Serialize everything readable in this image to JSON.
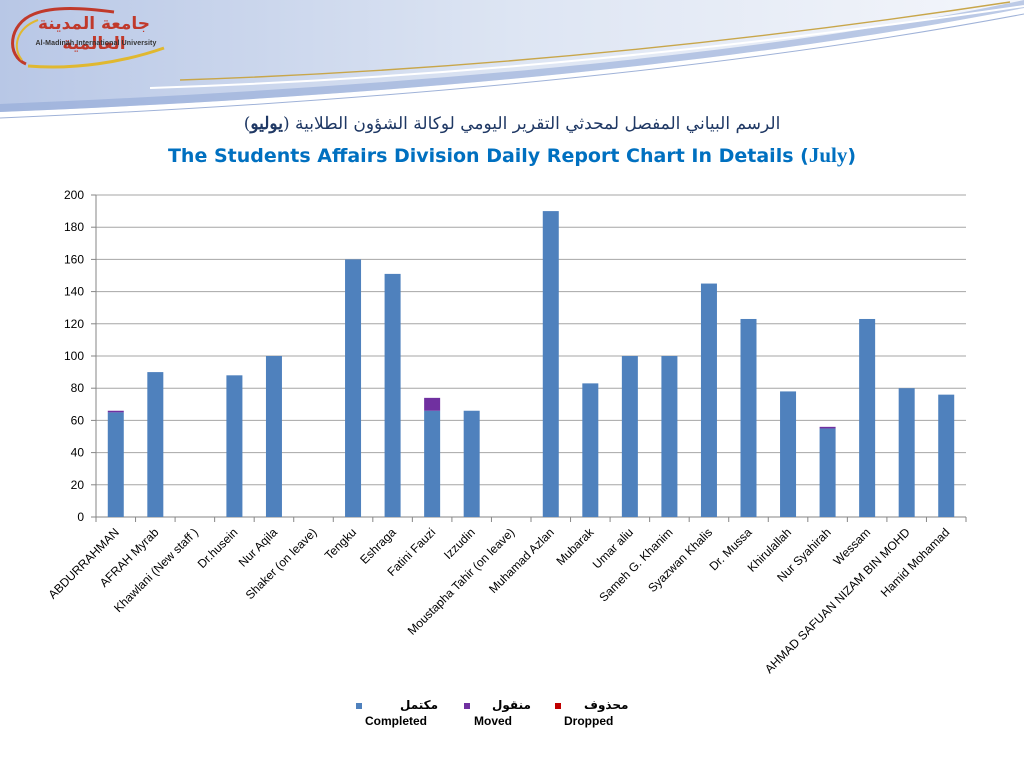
{
  "logo": {
    "arabic": "جامعة المدينة العالمية",
    "english": "Al-Madinah International University"
  },
  "title": {
    "arabic_before": "الرسم البياني المفصل لمحدثي التقرير اليومي لوكالة الشؤون الطلابية (",
    "arabic_month": "يوليو",
    "arabic_after": ")",
    "english_before": "The Students Affairs Division Daily Report Chart In Details (",
    "english_month": "July",
    "english_after": ")"
  },
  "colors": {
    "completed": "#4f81bd",
    "moved": "#7030a0",
    "dropped": "#c00000",
    "grid": "#a6a6a6",
    "axis": "#868686"
  },
  "chart_data": {
    "type": "bar",
    "stacked": true,
    "title": "",
    "xlabel": "",
    "ylabel": "",
    "ylim": [
      0,
      200
    ],
    "yticks": [
      0,
      20,
      40,
      60,
      80,
      100,
      120,
      140,
      160,
      180,
      200
    ],
    "grid": true,
    "legend_position": "bottom",
    "categories": [
      "ABDURRAHMAN",
      "AFRAH Myrab",
      "Khawlani (New staff )",
      "Dr.husein",
      "Nur Aqila",
      "Shaker (on leave)",
      "Tengku",
      "Eshraga",
      "Fatini Fauzi",
      "Izzudin",
      "Moustapha Tahir (on leave)",
      "Muhamad Azlan",
      "Mubarak",
      "Umar aliu",
      "Sameh G. Khanim",
      "Syazwan Khalis",
      "Dr. Mussa",
      "Khirulallah",
      "Nur Syahirah",
      "Wessam",
      "AHMAD SAFUAN NIZAM BIN MOHD",
      "Hamid  Mohamad"
    ],
    "series": [
      {
        "key": "completed",
        "name": "Completed",
        "name_ar": "مكتمل",
        "values": [
          65,
          90,
          0,
          88,
          100,
          0,
          160,
          151,
          66,
          66,
          0,
          190,
          83,
          100,
          100,
          145,
          123,
          78,
          55,
          123,
          80,
          76
        ]
      },
      {
        "key": "moved",
        "name": "Moved",
        "name_ar": "منقول",
        "values": [
          1,
          0,
          0,
          0,
          0,
          0,
          0,
          0,
          8,
          0,
          0,
          0,
          0,
          0,
          0,
          0,
          0,
          0,
          1,
          0,
          0,
          0
        ]
      },
      {
        "key": "dropped",
        "name": "Dropped",
        "name_ar": "محذوف",
        "values": [
          0,
          0,
          0,
          0,
          0,
          0,
          0,
          0,
          0,
          0,
          0,
          0,
          0,
          0,
          0,
          0,
          0,
          0,
          0,
          0,
          0,
          0
        ]
      }
    ]
  }
}
